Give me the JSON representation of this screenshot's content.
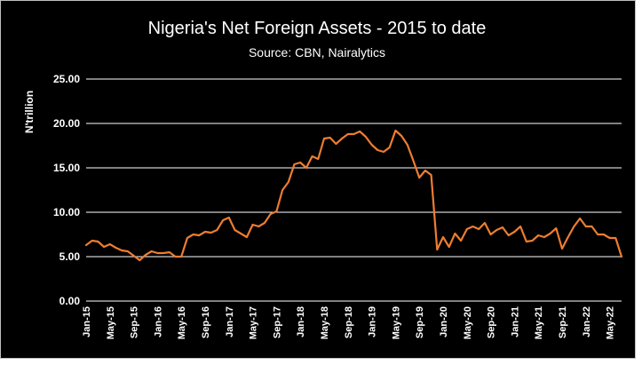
{
  "colors": {
    "background": "#000000",
    "line": "#ED7D31",
    "text": "#FFFFFF",
    "grid": "#FFFFFF"
  },
  "chart_data": {
    "type": "line",
    "title": "Nigeria's Net Foreign Assets - 2015 to date",
    "subtitle": "Source: CBN, Nairalytics",
    "ylabel": "N'trillion",
    "xlabel": "",
    "ylim": [
      0,
      25
    ],
    "y_ticks": [
      "0.00",
      "5.00",
      "10.00",
      "15.00",
      "20.00",
      "25.00"
    ],
    "grid": "horizontal",
    "legend": "none",
    "x_tick_labels": [
      "Jan-15",
      "May-15",
      "Sep-15",
      "Jan-16",
      "May-16",
      "Sep-16",
      "Jan-17",
      "May-17",
      "Sep-17",
      "Jan-18",
      "May-18",
      "Sep-18",
      "Jan-19",
      "May-19",
      "Sep-19",
      "Jan-20",
      "May-20",
      "Sep-20",
      "Jan-21",
      "May-21",
      "Sep-21",
      "Jan-22",
      "May-22"
    ],
    "x_start": "Jan-15",
    "x_end": "Jul-22",
    "series": [
      {
        "values": [
          6.3,
          6.8,
          6.7,
          6.1,
          6.4,
          6.0,
          5.7,
          5.6,
          5.1,
          4.6,
          5.2,
          5.6,
          5.4,
          5.4,
          5.5,
          5.0,
          5.0,
          7.1,
          7.5,
          7.4,
          7.8,
          7.7,
          8.0,
          9.1,
          9.4,
          8.0,
          7.6,
          7.2,
          8.6,
          8.4,
          8.8,
          9.8,
          10.1,
          12.5,
          13.4,
          15.4,
          15.6,
          15.0,
          16.3,
          16.0,
          18.3,
          18.4,
          17.7,
          18.3,
          18.8,
          18.8,
          19.1,
          18.5,
          17.6,
          17.0,
          16.8,
          17.3,
          19.2,
          18.6,
          17.6,
          15.8,
          13.9,
          14.7,
          14.2,
          5.8,
          7.2,
          6.1,
          7.6,
          6.8,
          8.1,
          8.4,
          8.1,
          8.8,
          7.5,
          8.0,
          8.3,
          7.4,
          7.8,
          8.4,
          6.7,
          6.8,
          7.4,
          7.2,
          7.6,
          8.2,
          5.9,
          7.2,
          8.4,
          9.3,
          8.4,
          8.4,
          7.5,
          7.5,
          7.1,
          7.1,
          5.0
        ]
      }
    ]
  }
}
